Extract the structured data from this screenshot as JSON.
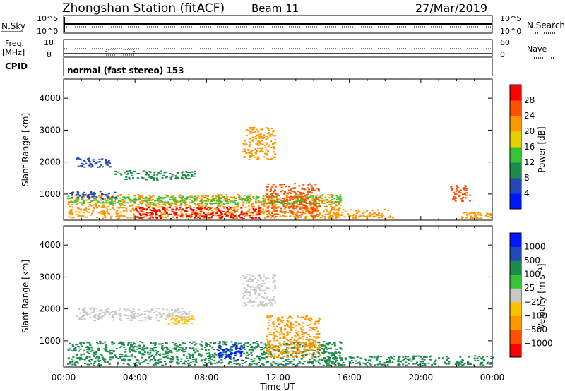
{
  "header": {
    "station": "Zhongshan Station (fitACF)",
    "beam": "Beam 11",
    "date": "27/Mar/2019"
  },
  "nsky_panel": {
    "left_label": "N.Sky",
    "right_label": "N.Search",
    "left_ticks": [
      "10^5",
      "10^0"
    ],
    "right_ticks": [
      "10^5",
      "10^0"
    ]
  },
  "freq_panel": {
    "left_label_1": "Freq.",
    "left_label_2": "[MHz]",
    "right_label": "Nave",
    "left_ticks": [
      "18",
      "8"
    ],
    "right_ticks": [
      "60",
      "0"
    ]
  },
  "cpid": {
    "label": "CPID",
    "text": "normal (fast stereo) 153"
  },
  "chart_data": [
    {
      "type": "heatmap",
      "title": "",
      "xlabel": "Time UT",
      "ylabel": "Slant Range [km]",
      "x_ticks": [
        "00:00",
        "04:00",
        "08:00",
        "12:00",
        "16:00",
        "20:00",
        "00:00"
      ],
      "xlim_hours": [
        0,
        24
      ],
      "y_ticks": [
        "4000",
        "3000",
        "2000",
        "1000"
      ],
      "ylim": [
        180,
        4600
      ],
      "colorbar": {
        "label": "Power [dB]",
        "ticks": [
          "28",
          "24",
          "20",
          "16",
          "12",
          "8",
          "4"
        ],
        "colors": [
          "#0018ff",
          "#2448b8",
          "#1c8a4a",
          "#36c436",
          "#e8d000",
          "#ff9800",
          "#ff5000",
          "#ff0000"
        ]
      },
      "regions": [
        {
          "t0": 0.2,
          "t1": 15.5,
          "r0": 250,
          "r1": 1000,
          "color": "#ff9800"
        },
        {
          "t0": 0.2,
          "t1": 15.5,
          "r0": 700,
          "r1": 950,
          "color": "#36c436"
        },
        {
          "t0": 4.0,
          "t1": 11.0,
          "r0": 250,
          "r1": 600,
          "color": "#ff0000"
        },
        {
          "t0": 0.3,
          "t1": 3.0,
          "r0": 850,
          "r1": 1100,
          "color": "#2448b8"
        },
        {
          "t0": 0.7,
          "t1": 2.7,
          "r0": 1850,
          "r1": 2150,
          "color": "#2448b8"
        },
        {
          "t0": 2.8,
          "t1": 7.3,
          "r0": 1450,
          "r1": 1750,
          "color": "#1c8a4a"
        },
        {
          "t0": 10.0,
          "t1": 11.8,
          "r0": 2100,
          "r1": 3100,
          "color": "#ff9800"
        },
        {
          "t0": 11.3,
          "t1": 14.3,
          "r0": 300,
          "r1": 1350,
          "color": "#ff5000"
        },
        {
          "t0": 14.5,
          "t1": 18.5,
          "r0": 250,
          "r1": 550,
          "color": "#ff9800"
        },
        {
          "t0": 21.6,
          "t1": 22.8,
          "r0": 800,
          "r1": 1300,
          "color": "#ff5000"
        },
        {
          "t0": 22.2,
          "t1": 23.9,
          "r0": 250,
          "r1": 450,
          "color": "#ff9800"
        }
      ]
    },
    {
      "type": "heatmap",
      "title": "",
      "xlabel": "Time UT",
      "ylabel": "Slant Range [km]",
      "x_ticks": [
        "00:00",
        "04:00",
        "08:00",
        "12:00",
        "16:00",
        "20:00",
        "00:00"
      ],
      "xlim_hours": [
        0,
        24
      ],
      "y_ticks": [
        "4000",
        "3000",
        "2000",
        "1000"
      ],
      "ylim": [
        180,
        4600
      ],
      "colorbar": {
        "label": "Velocity [m s⁻¹]",
        "ticks": [
          "1000",
          "500",
          "100",
          "25",
          "−25",
          "−100",
          "−500",
          "−1000"
        ],
        "colors": [
          "#ff0000",
          "#ff5000",
          "#ff9800",
          "#ffc000",
          "#c8c8c8",
          "#36c436",
          "#1c8a4a",
          "#2448b8",
          "#0018ff"
        ]
      },
      "regions": [
        {
          "t0": 0.2,
          "t1": 15.5,
          "r0": 250,
          "r1": 1000,
          "color": "#1c8a4a"
        },
        {
          "t0": 8.6,
          "t1": 10.1,
          "r0": 380,
          "r1": 900,
          "color": "#0018ff"
        },
        {
          "t0": 0.7,
          "t1": 7.0,
          "r0": 1650,
          "r1": 2050,
          "color": "#c8c8c8"
        },
        {
          "t0": 5.8,
          "t1": 7.3,
          "r0": 1550,
          "r1": 1800,
          "color": "#ffc000"
        },
        {
          "t0": 10.0,
          "t1": 11.8,
          "r0": 2100,
          "r1": 3100,
          "color": "#c8c8c8"
        },
        {
          "t0": 11.3,
          "t1": 14.3,
          "r0": 500,
          "r1": 1800,
          "color": "#ff9800"
        },
        {
          "t0": 14.5,
          "t1": 24.0,
          "r0": 250,
          "r1": 550,
          "color": "#1c8a4a"
        }
      ]
    }
  ]
}
